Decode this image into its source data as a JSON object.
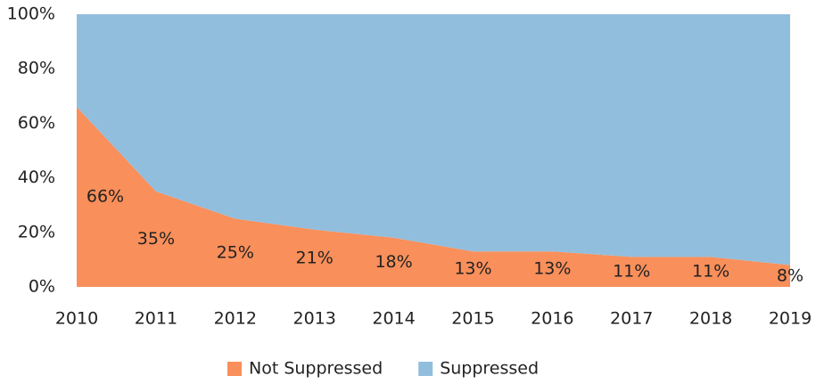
{
  "chart_data": {
    "type": "stacked_area",
    "categories": [
      "2010",
      "2011",
      "2012",
      "2013",
      "2014",
      "2015",
      "2016",
      "2017",
      "2018",
      "2019"
    ],
    "series": [
      {
        "name": "Not Suppressed",
        "color": "#f98f5a",
        "values": [
          66,
          35,
          25,
          21,
          18,
          13,
          13,
          11,
          11,
          8
        ],
        "value_labels": [
          "66%",
          "35%",
          "25%",
          "21%",
          "18%",
          "13%",
          "13%",
          "11%",
          "11%",
          "8%"
        ]
      },
      {
        "name": "Suppressed",
        "color": "#92bedd",
        "values": [
          34,
          65,
          75,
          79,
          82,
          87,
          87,
          89,
          89,
          92
        ]
      }
    ],
    "ylim": [
      0,
      100
    ],
    "yticks": [
      {
        "value": 0,
        "label": "0%"
      },
      {
        "value": 20,
        "label": "20%"
      },
      {
        "value": 40,
        "label": "40%"
      },
      {
        "value": 60,
        "label": "60%"
      },
      {
        "value": 80,
        "label": "80%"
      },
      {
        "value": 100,
        "label": "100%"
      }
    ],
    "legend": "bottom"
  }
}
